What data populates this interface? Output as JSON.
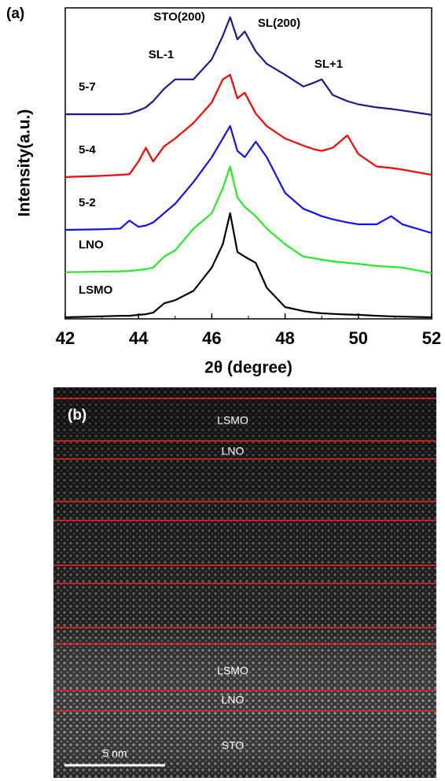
{
  "chart_data": {
    "type": "line",
    "panel_label": "(a)",
    "x_label": "2θ (degree)",
    "y_label": "Intensity(a.u.)",
    "xlim": [
      42,
      52
    ],
    "xticks": [
      42,
      44,
      46,
      48,
      50,
      52
    ],
    "ylim": [
      0,
      100
    ],
    "annotations": [
      "STO(200)",
      "SL(200)",
      "SL-1",
      "SL+1"
    ],
    "x": [
      42,
      43,
      43.5,
      43.75,
      44,
      44.2,
      44.4,
      44.7,
      45,
      45.5,
      46,
      46.3,
      46.5,
      46.7,
      46.9,
      47.2,
      47.5,
      48,
      48.5,
      48.8,
      49,
      49.3,
      49.7,
      50,
      50.5,
      50.9,
      51.2,
      52
    ],
    "series": [
      {
        "name": "5-7",
        "color": "#1a1a8c",
        "values": [
          65.8,
          65.8,
          65.8,
          66,
          67,
          68,
          70,
          74,
          77,
          77,
          83.5,
          91,
          97,
          89.9,
          92.4,
          86,
          82,
          78.5,
          74.7,
          76,
          77,
          72,
          70,
          69,
          68,
          67.5,
          67,
          65.6
        ]
      },
      {
        "name": "5-4",
        "color": "#ff0000",
        "values": [
          45.6,
          46,
          46.3,
          46.5,
          50.6,
          55,
          50.6,
          55.5,
          58,
          63,
          69.6,
          77,
          78.5,
          70.9,
          72.7,
          66,
          62,
          58,
          55.7,
          54.5,
          54,
          55,
          59,
          53,
          49,
          48.5,
          48,
          46.3
        ]
      },
      {
        "name": "5-2",
        "color": "#1010ff",
        "values": [
          28.6,
          28.8,
          29,
          31.6,
          29.6,
          30,
          31,
          34,
          37,
          44,
          52,
          58,
          62,
          54,
          52,
          57,
          52,
          40.5,
          35.4,
          34,
          33,
          32,
          31,
          30.4,
          30.4,
          33,
          30.4,
          27.6
        ]
      },
      {
        "name": "LNO",
        "color": "#22ee22",
        "values": [
          15,
          15.2,
          15.3,
          15.4,
          15.7,
          16,
          16.5,
          20,
          22,
          29,
          34,
          42,
          49,
          39,
          36,
          33,
          29,
          24,
          20,
          19.5,
          19,
          18.5,
          18,
          17.7,
          17,
          16.7,
          16.5,
          14.7
        ]
      },
      {
        "name": "LSMO",
        "color": "#000000",
        "values": [
          0.5,
          0.8,
          1,
          1,
          1.3,
          1.5,
          2,
          5,
          6,
          9,
          16.5,
          24,
          34,
          21.5,
          20,
          18,
          10,
          3.8,
          2.5,
          2,
          1.8,
          1.6,
          1.4,
          1.3,
          1,
          0.8,
          0.7,
          0.5
        ]
      }
    ]
  },
  "image": {
    "panel_label": "(b)",
    "layers": [
      "LSMO",
      "LNO",
      "LSMO",
      "LNO",
      "STO"
    ],
    "scale_bar": "5 nm"
  }
}
